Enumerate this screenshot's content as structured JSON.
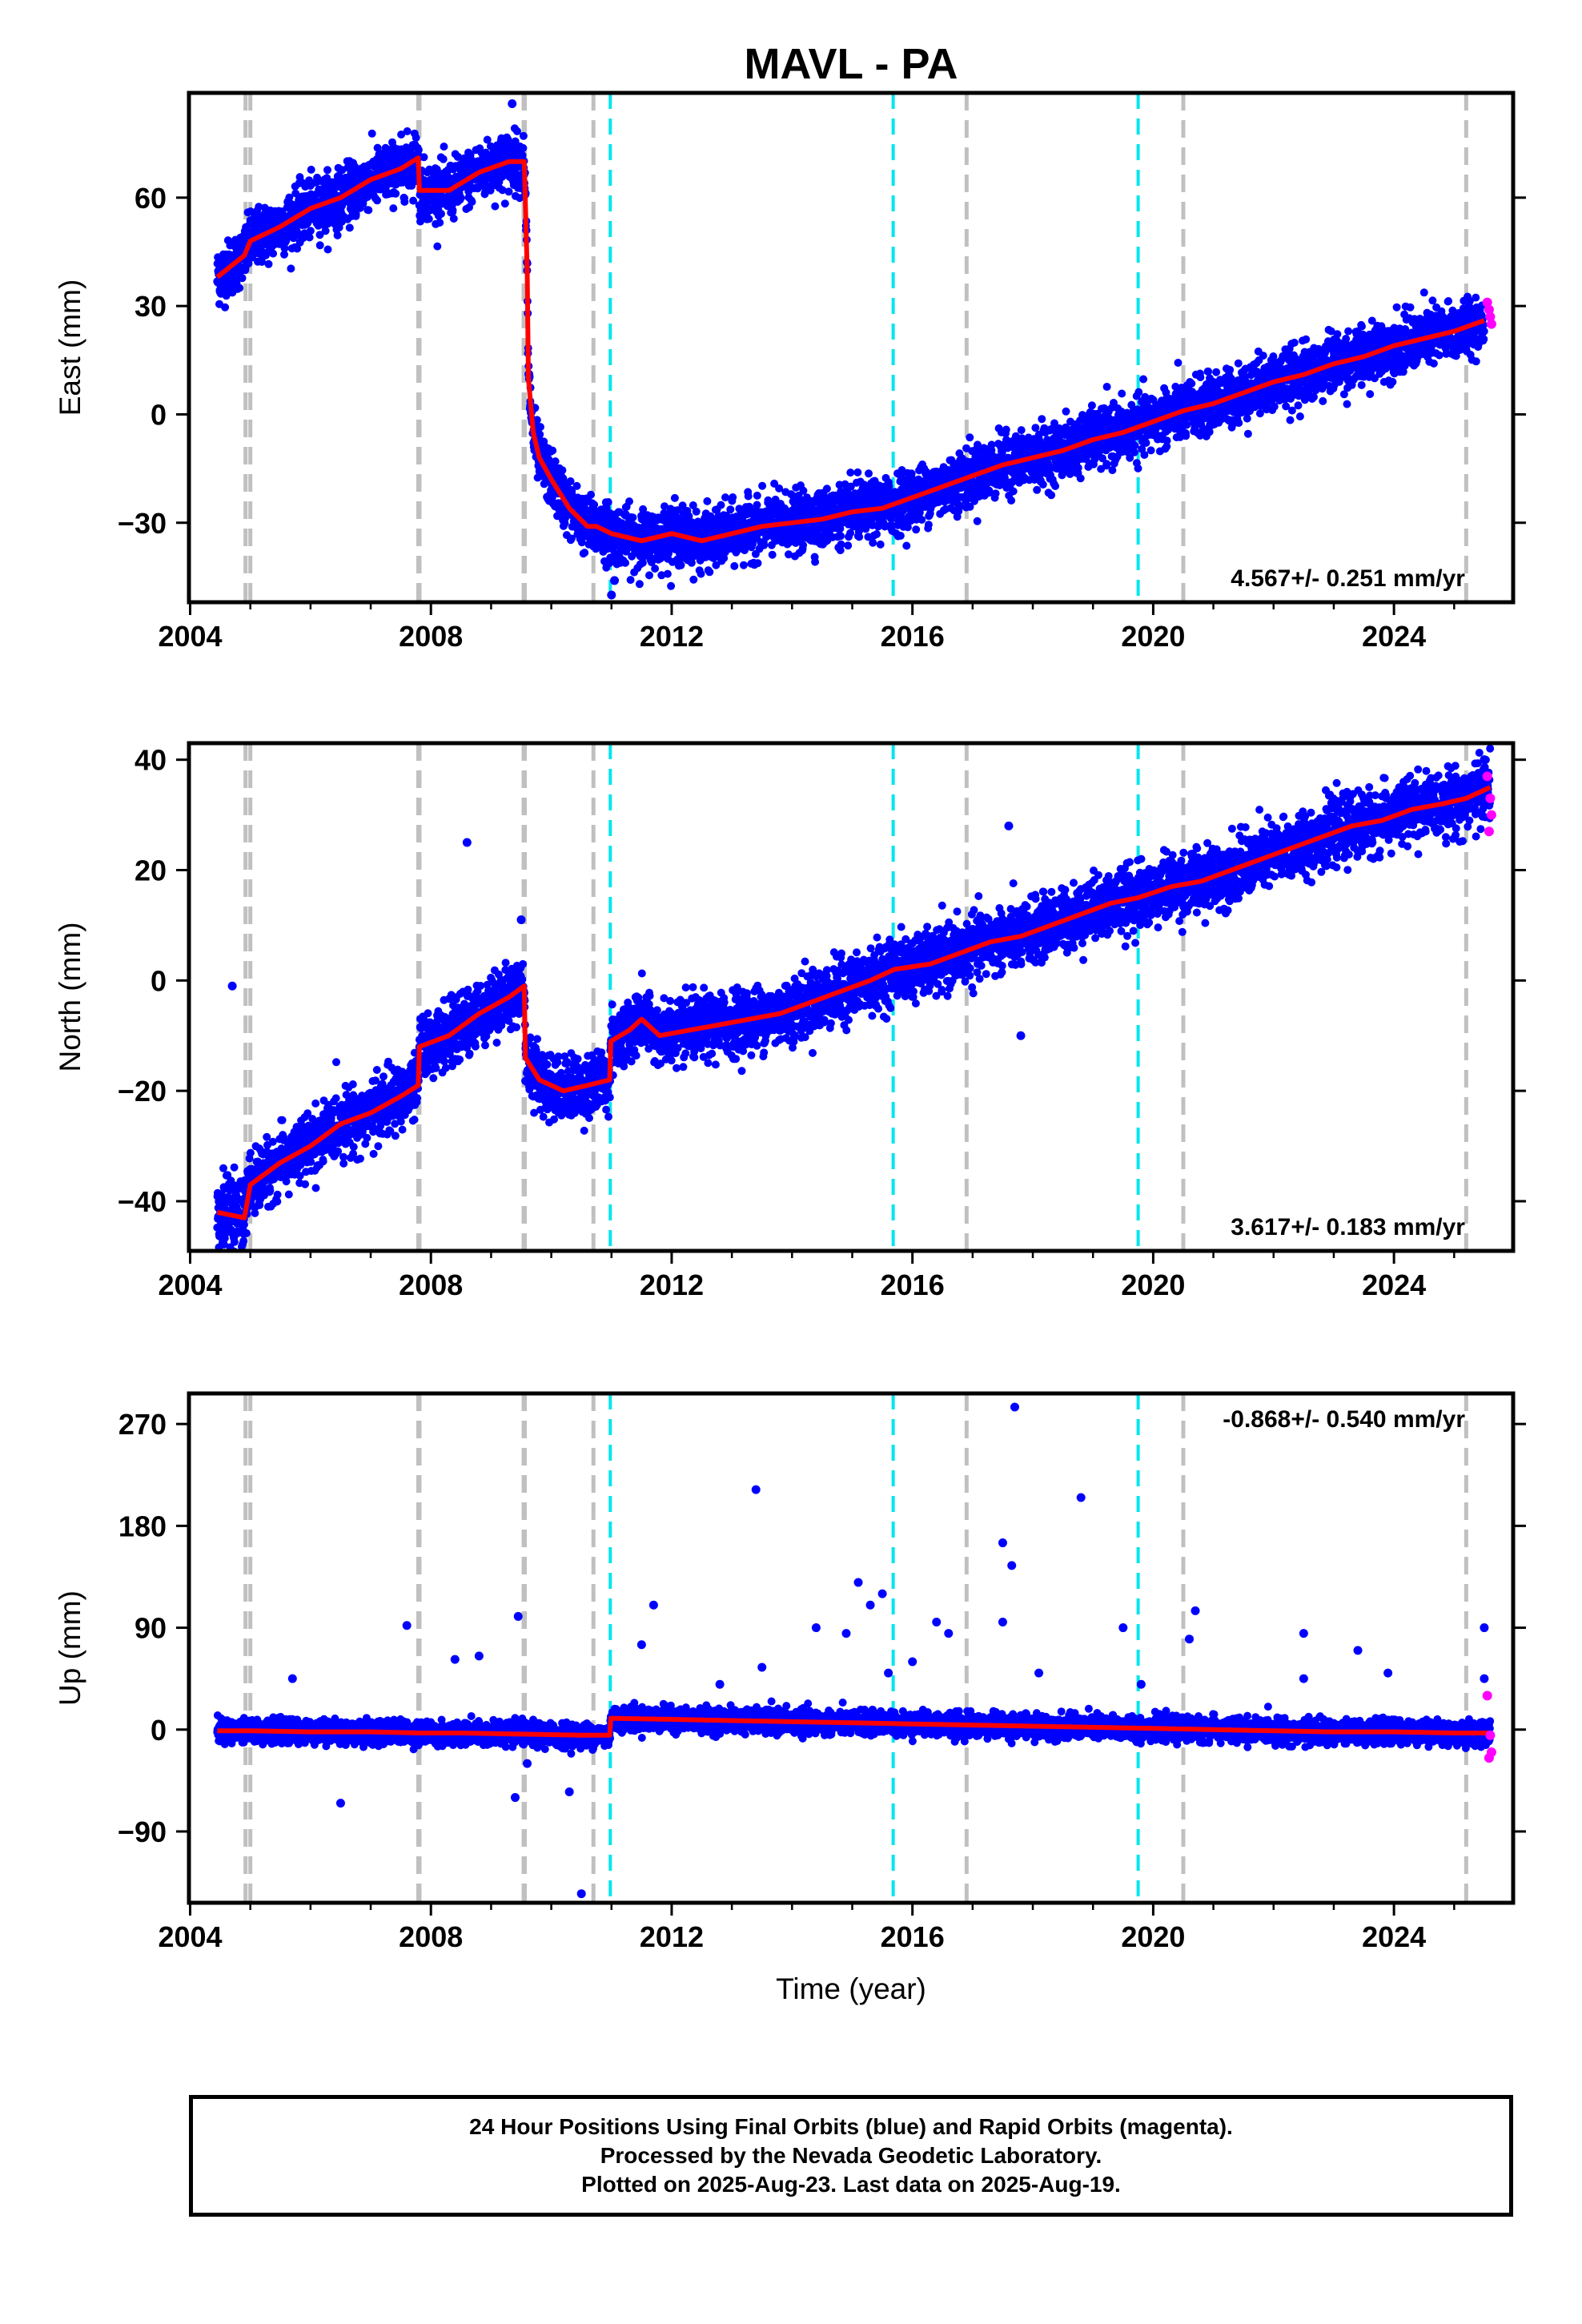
{
  "chart_data": {
    "type": "scatter",
    "title": "MAVL - PA",
    "xlabel": "Time (year)",
    "xlim": [
      2003.98,
      2025.98
    ],
    "xticks": [
      2004,
      2008,
      2012,
      2016,
      2020,
      2024
    ],
    "gray_lines": [
      2004.92,
      2005.0,
      2007.79,
      2007.81,
      2009.54,
      2009.56,
      2010.7,
      2016.9,
      2020.5,
      2025.2
    ],
    "cyan_lines": [
      2010.98,
      2015.68,
      2019.75
    ],
    "colors": {
      "final": "#0000ff",
      "rapid": "#ff00ff",
      "model": "#ff0000",
      "gray": "#c0c0c0",
      "cyan": "#00e5ee"
    },
    "panels": [
      {
        "name": "east",
        "ylabel": "East (mm)",
        "ylim": [
          -52,
          89
        ],
        "yticks": [
          -30,
          0,
          30,
          60
        ],
        "rate_label": "4.567+/- 0.251 mm/yr",
        "rate_pos": "bottom-right",
        "model": [
          [
            2004.45,
            38
          ],
          [
            2004.9,
            44
          ],
          [
            2005.0,
            48
          ],
          [
            2005.5,
            52
          ],
          [
            2006.0,
            57
          ],
          [
            2006.5,
            60
          ],
          [
            2007.0,
            65
          ],
          [
            2007.5,
            68
          ],
          [
            2007.79,
            71
          ],
          [
            2007.81,
            62
          ],
          [
            2008.3,
            62
          ],
          [
            2008.8,
            67
          ],
          [
            2009.3,
            70
          ],
          [
            2009.55,
            70
          ],
          [
            2009.6,
            40
          ],
          [
            2009.62,
            10
          ],
          [
            2009.7,
            -5
          ],
          [
            2009.8,
            -12
          ],
          [
            2010.0,
            -18
          ],
          [
            2010.3,
            -26
          ],
          [
            2010.6,
            -31
          ],
          [
            2010.75,
            -31
          ],
          [
            2011.0,
            -33
          ],
          [
            2011.5,
            -35
          ],
          [
            2012.0,
            -33
          ],
          [
            2012.5,
            -35
          ],
          [
            2013.0,
            -33
          ],
          [
            2013.5,
            -31
          ],
          [
            2014.0,
            -30
          ],
          [
            2014.5,
            -29
          ],
          [
            2015.0,
            -27
          ],
          [
            2015.5,
            -26
          ],
          [
            2016.0,
            -23
          ],
          [
            2016.5,
            -20
          ],
          [
            2017.0,
            -17
          ],
          [
            2017.5,
            -14
          ],
          [
            2018.0,
            -12
          ],
          [
            2018.5,
            -10
          ],
          [
            2019.0,
            -7
          ],
          [
            2019.5,
            -5
          ],
          [
            2020.0,
            -2
          ],
          [
            2020.5,
            1
          ],
          [
            2021.0,
            3
          ],
          [
            2021.5,
            6
          ],
          [
            2022.0,
            9
          ],
          [
            2022.5,
            11
          ],
          [
            2023.0,
            14
          ],
          [
            2023.5,
            16
          ],
          [
            2024.0,
            19
          ],
          [
            2024.5,
            21
          ],
          [
            2025.0,
            23
          ],
          [
            2025.5,
            26
          ]
        ],
        "scatter": 7,
        "rapid": [
          [
            2025.55,
            31
          ],
          [
            2025.6,
            27
          ],
          [
            2025.62,
            25
          ],
          [
            2025.58,
            29
          ]
        ],
        "outliers": [
          [
            2009.35,
            86
          ],
          [
            2011.0,
            -50
          ],
          [
            2011.05,
            -46
          ],
          [
            2004.5,
            34
          ]
        ]
      },
      {
        "name": "north",
        "ylabel": "North (mm)",
        "ylim": [
          -49,
          43
        ],
        "yticks": [
          -40,
          -20,
          0,
          20,
          40
        ],
        "rate_label": "3.617+/- 0.183 mm/yr",
        "rate_pos": "bottom-right",
        "model": [
          [
            2004.45,
            -42
          ],
          [
            2004.9,
            -43
          ],
          [
            2005.0,
            -37
          ],
          [
            2005.5,
            -33
          ],
          [
            2006.0,
            -30
          ],
          [
            2006.5,
            -26
          ],
          [
            2007.0,
            -24
          ],
          [
            2007.5,
            -21
          ],
          [
            2007.79,
            -19
          ],
          [
            2007.81,
            -12
          ],
          [
            2008.3,
            -10
          ],
          [
            2008.8,
            -6
          ],
          [
            2009.3,
            -3
          ],
          [
            2009.55,
            -1
          ],
          [
            2009.57,
            -14
          ],
          [
            2009.8,
            -18
          ],
          [
            2010.2,
            -20
          ],
          [
            2010.6,
            -19
          ],
          [
            2010.97,
            -18
          ],
          [
            2010.99,
            -11
          ],
          [
            2011.3,
            -9
          ],
          [
            2011.5,
            -7
          ],
          [
            2011.8,
            -10
          ],
          [
            2012.3,
            -9
          ],
          [
            2012.8,
            -8
          ],
          [
            2013.3,
            -7
          ],
          [
            2013.8,
            -6
          ],
          [
            2014.3,
            -4
          ],
          [
            2014.8,
            -2
          ],
          [
            2015.3,
            0
          ],
          [
            2015.7,
            2
          ],
          [
            2016.3,
            3
          ],
          [
            2016.8,
            5
          ],
          [
            2017.3,
            7
          ],
          [
            2017.8,
            8
          ],
          [
            2018.3,
            10
          ],
          [
            2018.8,
            12
          ],
          [
            2019.3,
            14
          ],
          [
            2019.75,
            15
          ],
          [
            2020.3,
            17
          ],
          [
            2020.8,
            18
          ],
          [
            2021.3,
            20
          ],
          [
            2021.8,
            22
          ],
          [
            2022.3,
            24
          ],
          [
            2022.8,
            26
          ],
          [
            2023.3,
            28
          ],
          [
            2023.8,
            29
          ],
          [
            2024.3,
            31
          ],
          [
            2024.8,
            32
          ],
          [
            2025.2,
            33
          ],
          [
            2025.6,
            35
          ]
        ],
        "scatter": 5,
        "rapid": [
          [
            2025.55,
            37
          ],
          [
            2025.6,
            33
          ],
          [
            2025.62,
            30
          ],
          [
            2025.58,
            27
          ]
        ],
        "outliers": [
          [
            2004.7,
            -1
          ],
          [
            2008.6,
            25
          ],
          [
            2009.5,
            11
          ],
          [
            2017.6,
            28
          ],
          [
            2017.8,
            -10
          ],
          [
            2025.5,
            40
          ]
        ]
      },
      {
        "name": "up",
        "ylabel": "Up (mm)",
        "ylim": [
          -153,
          297
        ],
        "yticks": [
          -90,
          0,
          90,
          180,
          270
        ],
        "rate_label": "-0.868+/- 0.540 mm/yr",
        "rate_pos": "top-right",
        "model": [
          [
            2004.45,
            -1
          ],
          [
            2005.0,
            -1
          ],
          [
            2006.0,
            -2
          ],
          [
            2007.0,
            -2
          ],
          [
            2007.8,
            -3
          ],
          [
            2008.5,
            -3
          ],
          [
            2009.5,
            -4
          ],
          [
            2010.5,
            -5
          ],
          [
            2010.97,
            -5
          ],
          [
            2010.99,
            10
          ],
          [
            2012.0,
            9
          ],
          [
            2013.0,
            8
          ],
          [
            2014.0,
            7
          ],
          [
            2015.0,
            6
          ],
          [
            2016.0,
            5
          ],
          [
            2017.0,
            4
          ],
          [
            2018.0,
            3
          ],
          [
            2019.0,
            2
          ],
          [
            2020.0,
            1
          ],
          [
            2021.0,
            0
          ],
          [
            2022.0,
            -1
          ],
          [
            2023.0,
            -2
          ],
          [
            2024.0,
            -2
          ],
          [
            2025.0,
            -3
          ],
          [
            2025.6,
            -3
          ]
        ],
        "scatter": 9,
        "rapid": [
          [
            2025.55,
            30
          ],
          [
            2025.6,
            -5
          ],
          [
            2025.62,
            -20
          ],
          [
            2025.58,
            -25
          ]
        ],
        "outliers": [
          [
            2007.6,
            92
          ],
          [
            2009.45,
            100
          ],
          [
            2009.6,
            -30
          ],
          [
            2008.4,
            62
          ],
          [
            2008.8,
            65
          ],
          [
            2006.5,
            -65
          ],
          [
            2009.4,
            -60
          ],
          [
            2010.3,
            -55
          ],
          [
            2010.5,
            -145
          ],
          [
            2005.7,
            45
          ],
          [
            2011.7,
            110
          ],
          [
            2011.5,
            75
          ],
          [
            2013.4,
            212
          ],
          [
            2014.4,
            90
          ],
          [
            2014.9,
            85
          ],
          [
            2015.3,
            110
          ],
          [
            2015.5,
            120
          ],
          [
            2015.1,
            130
          ],
          [
            2015.6,
            50
          ],
          [
            2016.4,
            95
          ],
          [
            2016.6,
            85
          ],
          [
            2017.5,
            165
          ],
          [
            2017.65,
            145
          ],
          [
            2017.7,
            285
          ],
          [
            2017.5,
            95
          ],
          [
            2018.8,
            205
          ],
          [
            2019.5,
            90
          ],
          [
            2019.8,
            40
          ],
          [
            2020.7,
            105
          ],
          [
            2020.6,
            80
          ],
          [
            2022.5,
            85
          ],
          [
            2022.5,
            45
          ],
          [
            2023.4,
            70
          ],
          [
            2023.9,
            50
          ],
          [
            2025.5,
            90
          ],
          [
            2025.5,
            45
          ],
          [
            2013.5,
            55
          ],
          [
            2016.0,
            60
          ],
          [
            2018.1,
            50
          ],
          [
            2012.8,
            40
          ]
        ]
      }
    ]
  },
  "footer": {
    "line1": "24 Hour Positions Using Final Orbits (blue) and Rapid Orbits (magenta).",
    "line2": "Processed by the Nevada Geodetic Laboratory.",
    "line3": "Plotted on 2025-Aug-23. Last data on 2025-Aug-19."
  }
}
